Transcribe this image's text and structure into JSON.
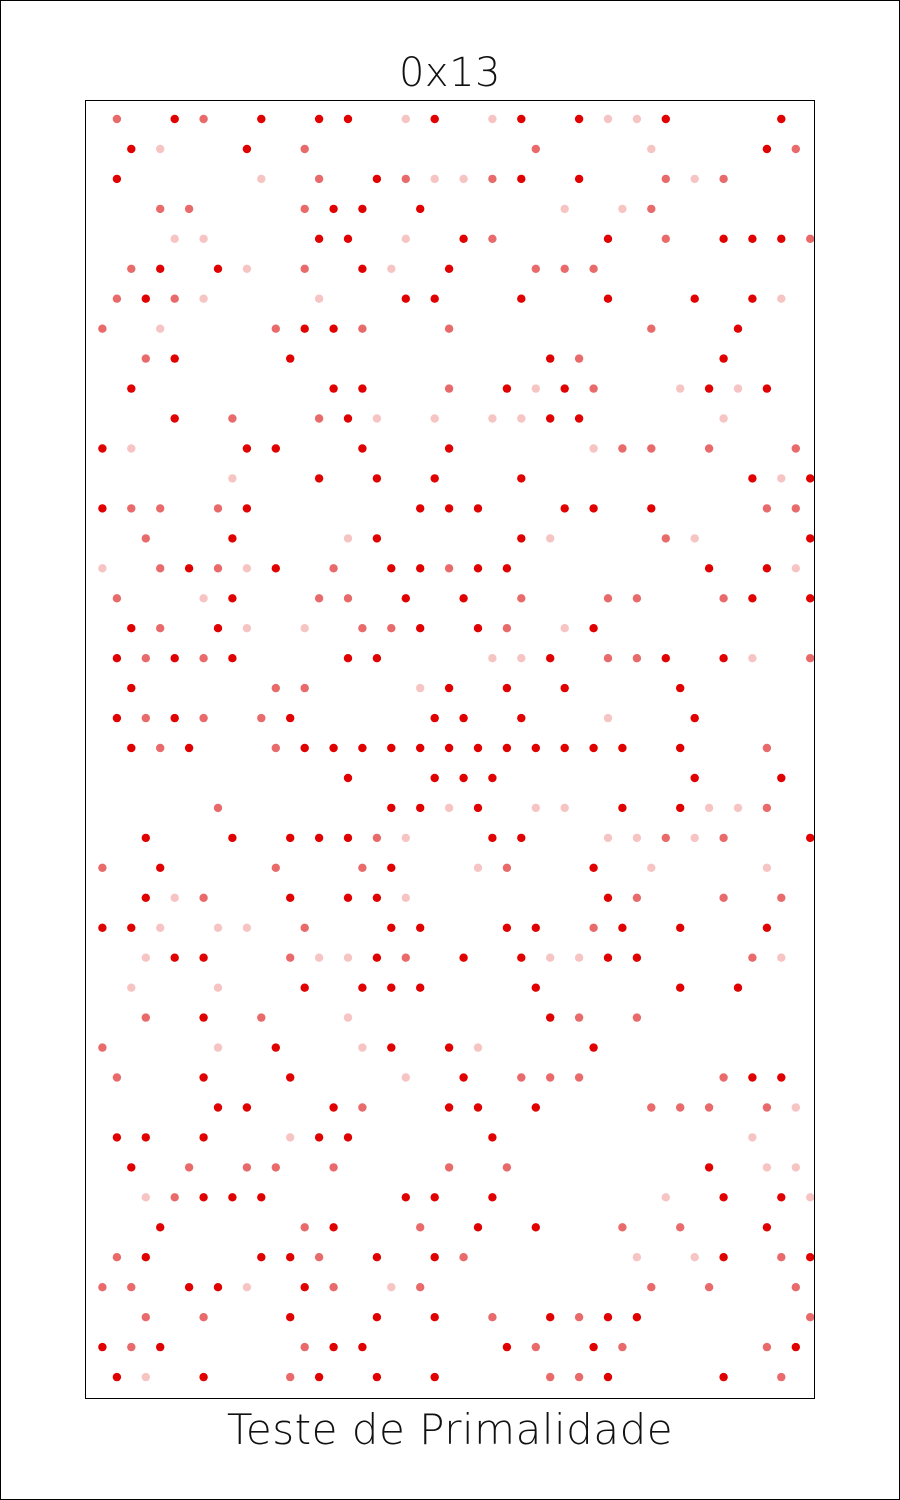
{
  "header": {
    "title": "0x13"
  },
  "footer": {
    "label": "Teste de Primalidade"
  },
  "plot": {
    "description_colors": {
      "dot_strong": "#e00000",
      "dot_medium": "#e86a6a",
      "dot_light": "#f7c4c4"
    },
    "grid": {
      "columns": 25,
      "rows": 43,
      "seed": 19
    },
    "border_color": "#000000"
  }
}
